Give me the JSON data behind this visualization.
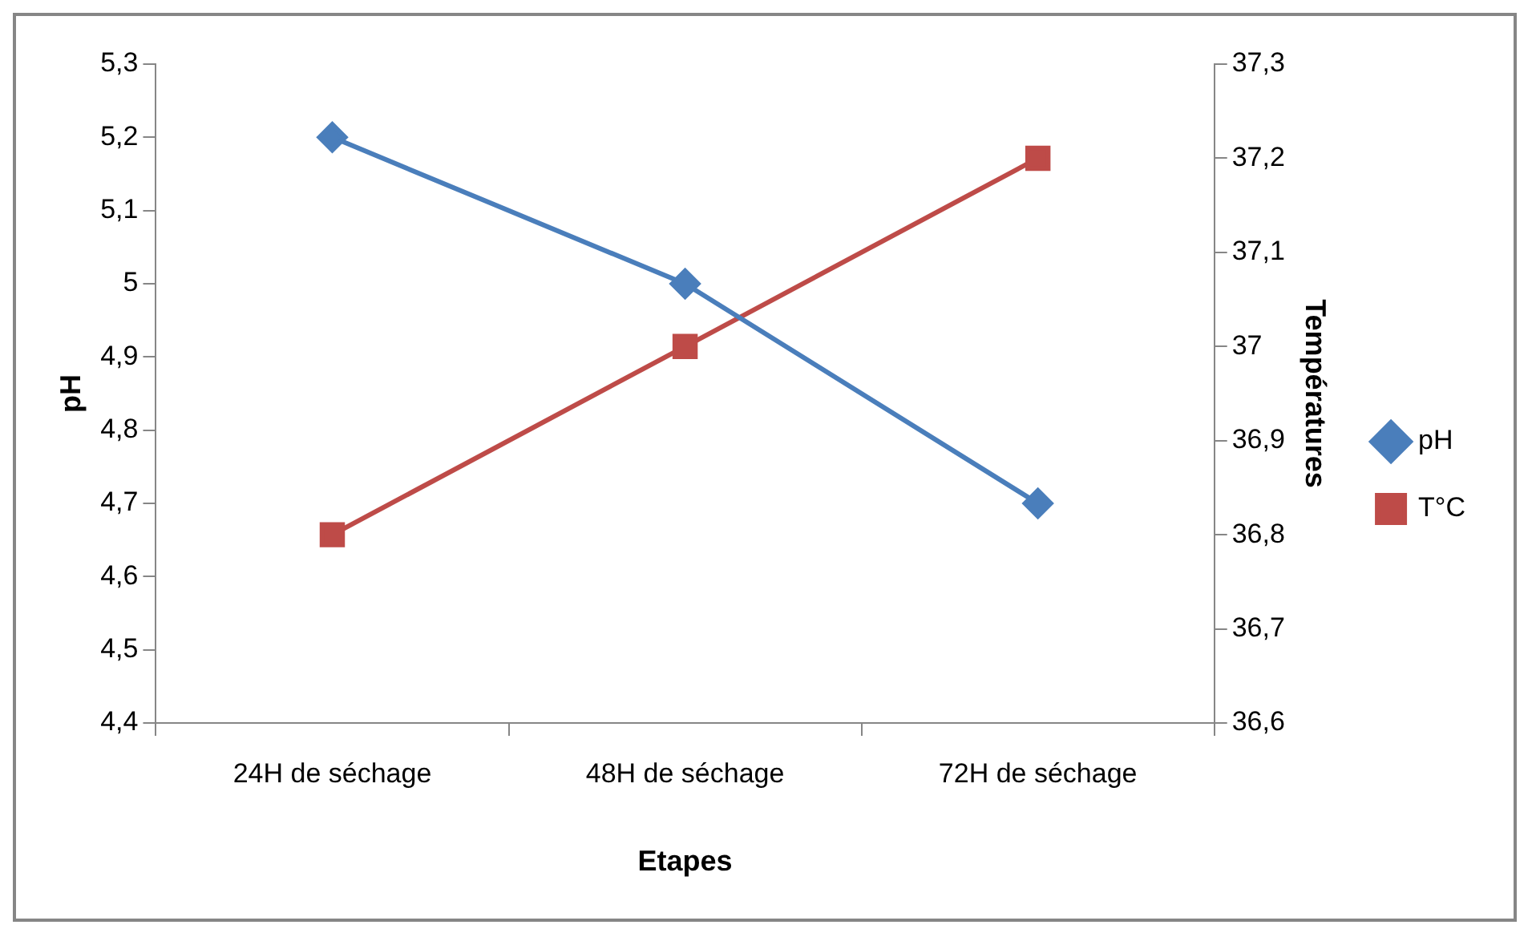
{
  "chart_data": {
    "type": "line",
    "xlabel": "Etapes",
    "ylabel": "pH",
    "y2label": "Températures",
    "categories": [
      "24H de séchage",
      "48H de séchage",
      "72H de séchage"
    ],
    "series": [
      {
        "name": "pH",
        "color": "#4a7ebb",
        "values": [
          5.2,
          5.0,
          4.7
        ],
        "marker": "diamond"
      },
      {
        "name": "T°C",
        "color": "#be4b48",
        "values": [
          36.8,
          37.0,
          37.2
        ],
        "marker": "square",
        "axis": "y2"
      }
    ],
    "ylim": [
      4.4,
      5.3
    ],
    "yticks": [
      {
        "value": 4.4,
        "label": "4,4"
      },
      {
        "value": 4.5,
        "label": "4,5"
      },
      {
        "value": 4.6,
        "label": "4,6"
      },
      {
        "value": 4.7,
        "label": "4,7"
      },
      {
        "value": 4.8,
        "label": "4,8"
      },
      {
        "value": 4.9,
        "label": "4,9"
      },
      5,
      {
        "value": 5.1,
        "label": "5,1"
      },
      {
        "value": 5.2,
        "label": "5,2"
      },
      {
        "value": 5.3,
        "label": "5,3"
      }
    ],
    "y2lim": [
      36.6,
      37.3
    ],
    "y2ticks": [
      {
        "value": 36.6,
        "label": "36,6"
      },
      {
        "value": 36.7,
        "label": "36,7"
      },
      {
        "value": 36.8,
        "label": "36,8"
      },
      {
        "value": 36.9,
        "label": "36,9"
      },
      37,
      {
        "value": 37.1,
        "label": "37,1"
      },
      {
        "value": 37.2,
        "label": "37,2"
      },
      {
        "value": 37.3,
        "label": "37,3"
      }
    ],
    "grid": false,
    "legend": "right",
    "line_style": "solid"
  }
}
